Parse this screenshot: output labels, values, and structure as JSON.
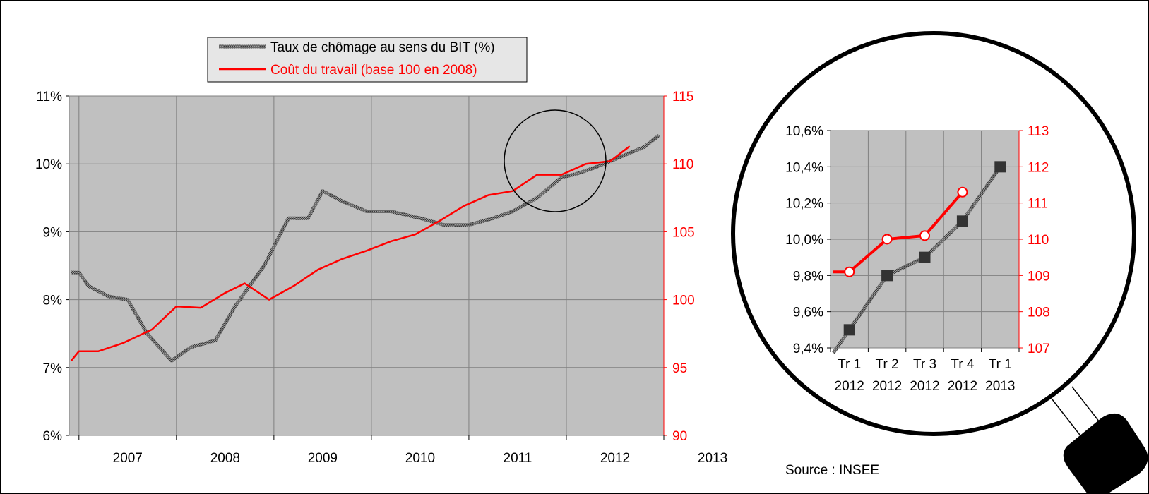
{
  "source": "Source : INSEE",
  "colors": {
    "unemployment": "#555555",
    "labor_cost": "#ff0000",
    "plot_bg": "#c0c0c0",
    "grid": "#808080",
    "marker_unemployment": "#333333"
  },
  "chart_data": [
    {
      "type": "line",
      "title": "",
      "legend": {
        "placement": "top-center",
        "entries": [
          "Taux de chômage au sens du BIT (%)",
          "Coût du travail (base 100 en 2008)"
        ]
      },
      "grid": true,
      "x_categories": [
        "2007",
        "2008",
        "2009",
        "2010",
        "2011",
        "2012",
        "2013"
      ],
      "xlim": [
        2006.9,
        2013.0
      ],
      "y_left": {
        "ticks": [
          "6%",
          "7%",
          "8%",
          "9%",
          "10%",
          "11%"
        ],
        "lim": [
          6,
          11
        ]
      },
      "y_right": {
        "ticks": [
          "90",
          "95",
          "100",
          "105",
          "110",
          "115"
        ],
        "lim": [
          90,
          115
        ]
      },
      "series": [
        {
          "name": "Taux de chômage au sens du BIT (%)",
          "axis": "left",
          "x": [
            2006.92,
            2007.0,
            2007.1,
            2007.3,
            2007.5,
            2007.7,
            2007.95,
            2008.15,
            2008.4,
            2008.6,
            2008.9,
            2009.15,
            2009.35,
            2009.5,
            2009.7,
            2009.95,
            2010.2,
            2010.5,
            2010.75,
            2011.0,
            2011.25,
            2011.45,
            2011.7,
            2011.95,
            2012.1,
            2012.3,
            2012.55,
            2012.8,
            2012.95
          ],
          "y": [
            8.4,
            8.4,
            8.2,
            8.05,
            8.0,
            7.5,
            7.1,
            7.3,
            7.4,
            7.9,
            8.5,
            9.2,
            9.2,
            9.6,
            9.45,
            9.3,
            9.3,
            9.2,
            9.1,
            9.1,
            9.2,
            9.3,
            9.5,
            9.8,
            9.85,
            9.95,
            10.1,
            10.25,
            10.42
          ]
        },
        {
          "name": "Coût du travail (base 100 en 2008)",
          "axis": "right",
          "x": [
            2006.92,
            2007.0,
            2007.2,
            2007.45,
            2007.75,
            2008.0,
            2008.25,
            2008.5,
            2008.7,
            2008.95,
            2009.2,
            2009.45,
            2009.7,
            2009.95,
            2010.2,
            2010.45,
            2010.7,
            2010.95,
            2011.2,
            2011.45,
            2011.7,
            2011.95,
            2012.2,
            2012.45,
            2012.65
          ],
          "y": [
            95.5,
            96.2,
            96.2,
            96.8,
            97.8,
            99.5,
            99.4,
            100.5,
            101.2,
            100.0,
            101.0,
            102.2,
            103.0,
            103.6,
            104.3,
            104.8,
            105.8,
            106.9,
            107.7,
            108.0,
            109.2,
            109.2,
            110.0,
            110.2,
            111.3
          ]
        }
      ]
    },
    {
      "type": "line",
      "title": "",
      "grid": true,
      "categories": [
        "Tr 1\n2012",
        "Tr 2\n2012",
        "Tr 3\n2012",
        "Tr 4\n2012",
        "Tr 1\n2013"
      ],
      "category_lines": [
        [
          "Tr 1",
          "2012"
        ],
        [
          "Tr 2",
          "2012"
        ],
        [
          "Tr 3",
          "2012"
        ],
        [
          "Tr 4",
          "2012"
        ],
        [
          "Tr 1",
          "2013"
        ]
      ],
      "y_left": {
        "ticks": [
          "9,4%",
          "9,6%",
          "9,8%",
          "10,0%",
          "10,2%",
          "10,4%",
          "10,6%"
        ],
        "lim": [
          9.4,
          10.6
        ]
      },
      "y_right": {
        "ticks": [
          "107",
          "108",
          "109",
          "110",
          "111",
          "112",
          "113"
        ],
        "lim": [
          107,
          113
        ]
      },
      "series": [
        {
          "name": "Taux de chômage au sens du BIT (%)",
          "axis": "left",
          "values": [
            9.5,
            9.8,
            9.9,
            10.1,
            10.4
          ]
        },
        {
          "name": "Coût du travail (base 100 en 2008)",
          "axis": "right",
          "values": [
            109.1,
            110.0,
            110.1,
            111.3,
            null
          ]
        }
      ]
    }
  ]
}
